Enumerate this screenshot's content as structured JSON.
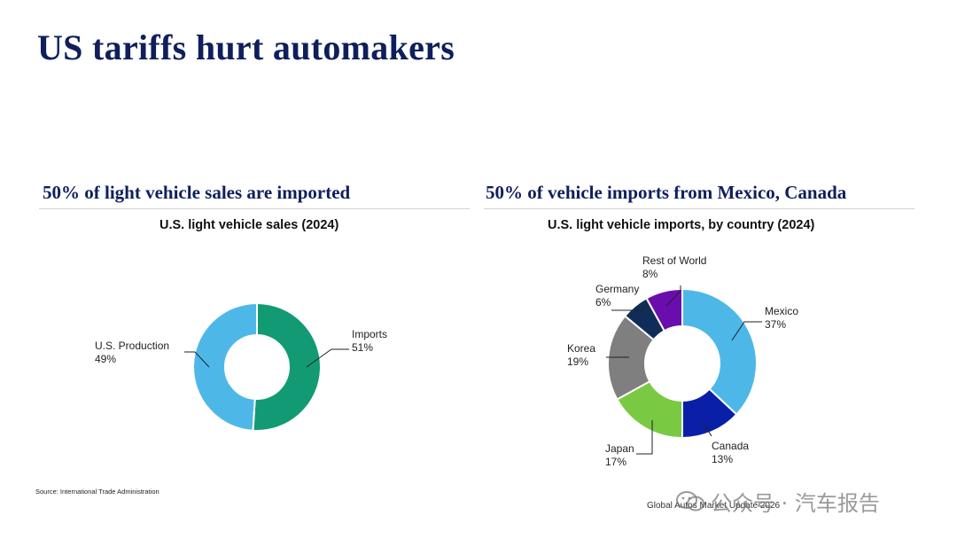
{
  "slide": {
    "title": "US tariffs hurt automakers",
    "source": "Source: International Trade Administration",
    "footer": "Global Autos Market Update 2026",
    "watermark": "公众号 · 汽车报告"
  },
  "colors": {
    "title": "#0f1f5c",
    "us_production": "#4db8e8",
    "imports": "#129a75",
    "mexico": "#4db8e8",
    "canada": "#0a1fa8",
    "japan": "#7ac943",
    "korea": "#7f7f7f",
    "germany": "#0f2d58",
    "rest_of_world": "#6a0dad"
  },
  "panels": [
    {
      "heading": "50% of light vehicle sales are imported",
      "chart_title": "U.S. light vehicle sales (2024)"
    },
    {
      "heading": "50% of vehicle imports from Mexico, Canada",
      "chart_title": "U.S. light vehicle imports, by country (2024)"
    }
  ],
  "chart_data": [
    {
      "type": "pie",
      "subtype": "donut",
      "title": "U.S. light vehicle sales (2024)",
      "unit": "%",
      "slices": [
        {
          "label": "Imports",
          "value": 51,
          "value_label": "51%",
          "color": "#129a75"
        },
        {
          "label": "U.S. Production",
          "value": 49,
          "value_label": "49%",
          "color": "#4db8e8"
        }
      ]
    },
    {
      "type": "pie",
      "subtype": "donut",
      "title": "U.S. light vehicle imports, by country (2024)",
      "unit": "%",
      "slices": [
        {
          "label": "Mexico",
          "value": 37,
          "value_label": "37%",
          "color": "#4db8e8"
        },
        {
          "label": "Canada",
          "value": 13,
          "value_label": "13%",
          "color": "#0a1fa8"
        },
        {
          "label": "Japan",
          "value": 17,
          "value_label": "17%",
          "color": "#7ac943"
        },
        {
          "label": "Korea",
          "value": 19,
          "value_label": "19%",
          "color": "#7f7f7f"
        },
        {
          "label": "Germany",
          "value": 6,
          "value_label": "6%",
          "color": "#0f2d58"
        },
        {
          "label": "Rest of World",
          "value": 8,
          "value_label": "8%",
          "color": "#6a0dad"
        }
      ]
    }
  ]
}
